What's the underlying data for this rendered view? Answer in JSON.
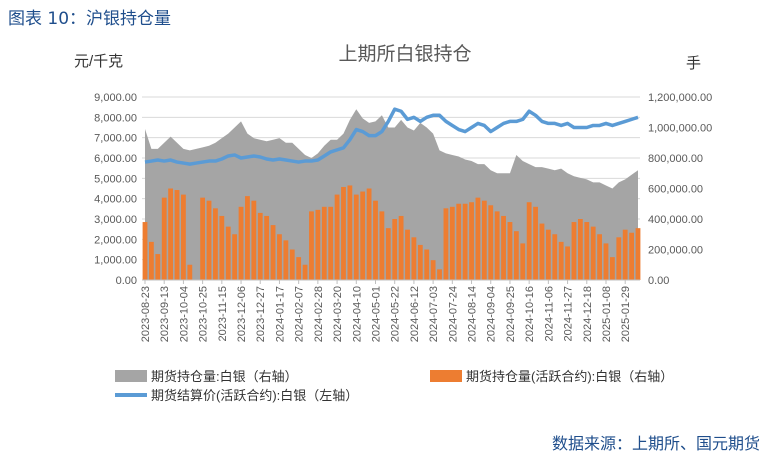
{
  "figure_title": "图表 10：沪银持仓量",
  "source": "数据来源：上期所、国元期货",
  "colors": {
    "total_oi": "#a5a5a5",
    "active_oi": "#ed7d31",
    "price": "#5b9bd5",
    "grid": "#d9d9d9",
    "title_blue": "#1f4e8c"
  },
  "chart_data": {
    "type": "area+bar+line",
    "title": "上期所白银持仓",
    "ylabel_left": "元/千克",
    "ylabel_right": "手",
    "ylim_left": [
      0,
      9000
    ],
    "ylim_right": [
      0,
      1200000
    ],
    "grid": true,
    "legend_placement": "bottom",
    "left_ticks": [
      "0.00",
      "1,000.00",
      "2,000.00",
      "3,000.00",
      "4,000.00",
      "5,000.00",
      "6,000.00",
      "7,000.00",
      "8,000.00",
      "9,000.00"
    ],
    "right_ticks": [
      "0.00",
      "200,000.00",
      "400,000.00",
      "600,000.00",
      "800,000.00",
      "1,000,000.00",
      "1,200,000.00"
    ],
    "x_tick_labels": [
      "2023-08-23",
      "2023-09-13",
      "2023-10-04",
      "2023-10-25",
      "2023-11-15",
      "2023-12-06",
      "2023-12-27",
      "2024-01-17",
      "2024-02-07",
      "2024-02-28",
      "2024-03-20",
      "2024-04-10",
      "2024-05-01",
      "2024-05-22",
      "2024-06-12",
      "2024-07-03",
      "2024-07-24",
      "2024-08-14",
      "2024-09-04",
      "2024-09-25",
      "2024-10-16",
      "2024-11-06",
      "2024-11-27",
      "2024-12-18",
      "2025-01-08",
      "2025-01-29"
    ],
    "x": [
      "2023-08-23",
      "2023-08-30",
      "2023-09-06",
      "2023-09-13",
      "2023-09-20",
      "2023-09-27",
      "2023-10-04",
      "2023-10-11",
      "2023-10-18",
      "2023-10-25",
      "2023-11-01",
      "2023-11-08",
      "2023-11-15",
      "2023-11-22",
      "2023-11-29",
      "2023-12-06",
      "2023-12-13",
      "2023-12-20",
      "2023-12-27",
      "2024-01-03",
      "2024-01-10",
      "2024-01-17",
      "2024-01-24",
      "2024-01-31",
      "2024-02-07",
      "2024-02-14",
      "2024-02-21",
      "2024-02-28",
      "2024-03-06",
      "2024-03-13",
      "2024-03-20",
      "2024-03-27",
      "2024-04-03",
      "2024-04-10",
      "2024-04-17",
      "2024-04-24",
      "2024-05-01",
      "2024-05-08",
      "2024-05-15",
      "2024-05-22",
      "2024-05-29",
      "2024-06-05",
      "2024-06-12",
      "2024-06-19",
      "2024-06-26",
      "2024-07-03",
      "2024-07-10",
      "2024-07-17",
      "2024-07-24",
      "2024-07-31",
      "2024-08-07",
      "2024-08-14",
      "2024-08-21",
      "2024-08-28",
      "2024-09-04",
      "2024-09-11",
      "2024-09-18",
      "2024-09-25",
      "2024-10-02",
      "2024-10-09",
      "2024-10-16",
      "2024-10-23",
      "2024-10-30",
      "2024-11-06",
      "2024-11-13",
      "2024-11-20",
      "2024-11-27",
      "2024-12-04",
      "2024-12-11",
      "2024-12-18",
      "2024-12-25",
      "2025-01-01",
      "2025-01-08",
      "2025-01-15",
      "2025-01-22",
      "2025-01-29",
      "2025-02-05",
      "2025-02-12"
    ],
    "series": [
      {
        "name": "期货持仓量:白银（右轴）",
        "axis": "right",
        "kind": "area",
        "values": [
          990000,
          860000,
          860000,
          900000,
          940000,
          900000,
          860000,
          850000,
          860000,
          870000,
          880000,
          900000,
          930000,
          960000,
          1000000,
          1040000,
          960000,
          930000,
          920000,
          910000,
          920000,
          930000,
          900000,
          900000,
          860000,
          820000,
          800000,
          830000,
          880000,
          920000,
          920000,
          960000,
          1050000,
          1120000,
          1060000,
          1030000,
          1040000,
          1080000,
          1000000,
          1000000,
          1050000,
          1000000,
          980000,
          1030000,
          1000000,
          960000,
          850000,
          830000,
          820000,
          810000,
          790000,
          780000,
          760000,
          760000,
          720000,
          700000,
          700000,
          700000,
          820000,
          780000,
          760000,
          740000,
          740000,
          730000,
          720000,
          730000,
          700000,
          680000,
          670000,
          660000,
          640000,
          640000,
          620000,
          600000,
          640000,
          660000,
          690000,
          720000
        ]
      },
      {
        "name": "期货持仓量(活跃合约):白银（右轴）",
        "axis": "right",
        "kind": "bar",
        "values": [
          380000,
          250000,
          170000,
          540000,
          600000,
          590000,
          560000,
          100000,
          0,
          540000,
          520000,
          470000,
          420000,
          350000,
          300000,
          480000,
          550000,
          520000,
          440000,
          420000,
          360000,
          300000,
          260000,
          200000,
          150000,
          100000,
          450000,
          460000,
          480000,
          480000,
          560000,
          610000,
          620000,
          560000,
          580000,
          600000,
          520000,
          450000,
          340000,
          400000,
          420000,
          330000,
          280000,
          230000,
          200000,
          130000,
          70000,
          470000,
          480000,
          500000,
          500000,
          510000,
          540000,
          520000,
          490000,
          450000,
          420000,
          380000,
          320000,
          240000,
          510000,
          480000,
          370000,
          330000,
          300000,
          250000,
          220000,
          380000,
          400000,
          380000,
          350000,
          300000,
          240000,
          150000,
          280000,
          330000,
          310000,
          340000
        ]
      },
      {
        "name": "期货结算价(活跃合约):白银（左轴）",
        "axis": "left",
        "kind": "line",
        "values": [
          5800,
          5850,
          5900,
          5850,
          5900,
          5800,
          5750,
          5700,
          5750,
          5800,
          5850,
          5850,
          5950,
          6100,
          6150,
          6000,
          6050,
          6100,
          6050,
          5950,
          5900,
          5950,
          5900,
          5850,
          5800,
          5850,
          5850,
          5900,
          6100,
          6300,
          6400,
          6500,
          6900,
          7400,
          7300,
          7100,
          7100,
          7300,
          7800,
          8400,
          8300,
          7900,
          8000,
          7800,
          8000,
          8100,
          8100,
          7800,
          7600,
          7400,
          7300,
          7500,
          7700,
          7600,
          7300,
          7500,
          7700,
          7800,
          7800,
          7900,
          8300,
          8100,
          7800,
          7700,
          7700,
          7600,
          7700,
          7500,
          7500,
          7500,
          7600,
          7600,
          7700,
          7600,
          7700,
          7800,
          7900,
          8000
        ]
      }
    ]
  }
}
